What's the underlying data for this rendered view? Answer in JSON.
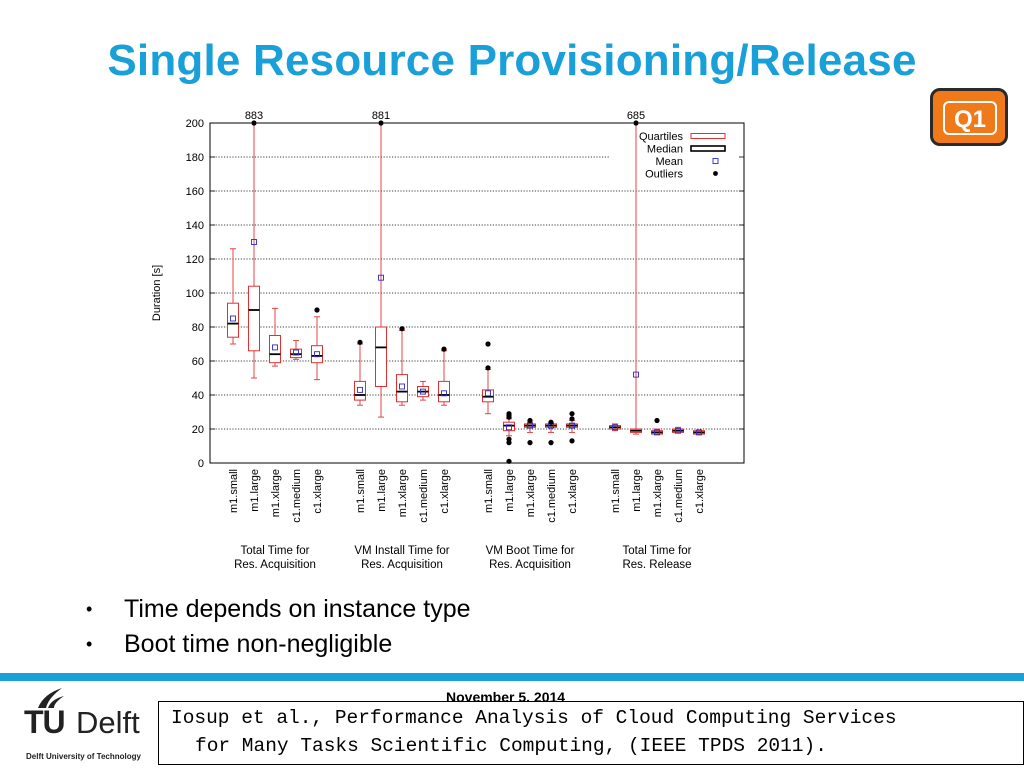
{
  "slide": {
    "title": "Single Resource Provisioning/Release",
    "badge": "Q1",
    "bullets": [
      "Time depends on instance type",
      "Boot time non-negligible"
    ],
    "date": "November 5, 2014",
    "logo": {
      "tu": "TU",
      "delft": "Delft",
      "university": "Delft University of Technology"
    },
    "citation": {
      "line1": "Iosup et al., Performance Analysis of Cloud Computing Services",
      "line2": "for Many Tasks Scientific Computing, (IEEE TPDS 2011)."
    }
  },
  "colors": {
    "title": "#1aa0d8",
    "badge": "#f07a1a",
    "quartile_box": "#e03030",
    "mean_marker": "#2b2bcc",
    "median": "#000000"
  },
  "chart_data": {
    "type": "box",
    "ylabel": "Duration [s]",
    "ylim": [
      0,
      200
    ],
    "yticks": [
      0,
      20,
      40,
      60,
      80,
      100,
      120,
      140,
      160,
      180,
      200
    ],
    "grid": "horizontal dotted",
    "legend": {
      "position": "top-right",
      "entries": [
        "Quartiles",
        "Median",
        "Mean",
        "Outliers"
      ]
    },
    "groups": [
      {
        "label": [
          "Total Time for",
          "Res. Acquisition"
        ],
        "top_label": "883",
        "boxes": [
          {
            "category": "m1.small",
            "min": 70,
            "q1": 74,
            "median": 82,
            "q3": 94,
            "max": 126,
            "mean": 85,
            "outliers": []
          },
          {
            "category": "m1.large",
            "min": 50,
            "q1": 66,
            "median": 90,
            "q3": 104,
            "max": 200,
            "mean": 130,
            "outliers": [
              200
            ]
          },
          {
            "category": "m1.xlarge",
            "min": 57,
            "q1": 59,
            "median": 64,
            "q3": 75,
            "max": 91,
            "mean": 68,
            "outliers": []
          },
          {
            "category": "c1.medium",
            "min": 61,
            "q1": 62,
            "median": 64,
            "q3": 67,
            "max": 72,
            "mean": 65,
            "outliers": []
          },
          {
            "category": "c1.xlarge",
            "min": 49,
            "q1": 59,
            "median": 63,
            "q3": 69,
            "max": 86,
            "mean": 64,
            "outliers": [
              90
            ]
          }
        ]
      },
      {
        "label": [
          "VM Install Time for",
          "Res. Acquisition"
        ],
        "top_label": "881",
        "boxes": [
          {
            "category": "m1.small",
            "min": 34,
            "q1": 37,
            "median": 40,
            "q3": 48,
            "max": 70,
            "mean": 43,
            "outliers": [
              71
            ]
          },
          {
            "category": "m1.large",
            "min": 27,
            "q1": 45,
            "median": 68,
            "q3": 80,
            "max": 200,
            "mean": 109,
            "outliers": [
              200
            ]
          },
          {
            "category": "m1.xlarge",
            "min": 34,
            "q1": 36,
            "median": 42,
            "q3": 52,
            "max": 78,
            "mean": 45,
            "outliers": [
              79
            ]
          },
          {
            "category": "c1.medium",
            "min": 37,
            "q1": 39,
            "median": 42,
            "q3": 45,
            "max": 48,
            "mean": 42,
            "outliers": []
          },
          {
            "category": "c1.xlarge",
            "min": 34,
            "q1": 36,
            "median": 40,
            "q3": 48,
            "max": 66,
            "mean": 41,
            "outliers": [
              67
            ]
          }
        ]
      },
      {
        "label": [
          "VM Boot Time for",
          "Res. Acquisition"
        ],
        "top_label": "",
        "boxes": [
          {
            "category": "m1.small",
            "min": 29,
            "q1": 36,
            "median": 39,
            "q3": 43,
            "max": 55,
            "mean": 41,
            "outliers": [
              56,
              70
            ]
          },
          {
            "category": "m1.large",
            "min": 16,
            "q1": 19,
            "median": 22,
            "q3": 24,
            "max": 26,
            "mean": 21,
            "outliers": [
              1,
              12,
              14,
              27,
              28,
              29
            ]
          },
          {
            "category": "m1.xlarge",
            "min": 18,
            "q1": 21,
            "median": 22,
            "q3": 23,
            "max": 24,
            "mean": 22,
            "outliers": [
              12,
              25
            ]
          },
          {
            "category": "c1.medium",
            "min": 18,
            "q1": 21,
            "median": 22,
            "q3": 23,
            "max": 23,
            "mean": 22,
            "outliers": [
              12,
              24
            ]
          },
          {
            "category": "c1.xlarge",
            "min": 18,
            "q1": 21,
            "median": 22,
            "q3": 23,
            "max": 25,
            "mean": 22,
            "outliers": [
              13,
              26,
              29
            ]
          }
        ]
      },
      {
        "label": [
          "Total Time for",
          "Res. Release"
        ],
        "top_label": "685",
        "boxes": [
          {
            "category": "m1.small",
            "min": 19,
            "q1": 20,
            "median": 21,
            "q3": 22,
            "max": 23,
            "mean": 21,
            "outliers": []
          },
          {
            "category": "m1.large",
            "min": 17,
            "q1": 18,
            "median": 19,
            "q3": 20,
            "max": 200,
            "mean": 52,
            "outliers": [
              200
            ]
          },
          {
            "category": "m1.xlarge",
            "min": 17,
            "q1": 17,
            "median": 18,
            "q3": 19,
            "max": 20,
            "mean": 18,
            "outliers": [
              25
            ]
          },
          {
            "category": "c1.medium",
            "min": 18,
            "q1": 18,
            "median": 19,
            "q3": 20,
            "max": 21,
            "mean": 19,
            "outliers": []
          },
          {
            "category": "c1.xlarge",
            "min": 17,
            "q1": 17,
            "median": 18,
            "q3": 19,
            "max": 19,
            "mean": 18,
            "outliers": []
          }
        ]
      }
    ]
  }
}
